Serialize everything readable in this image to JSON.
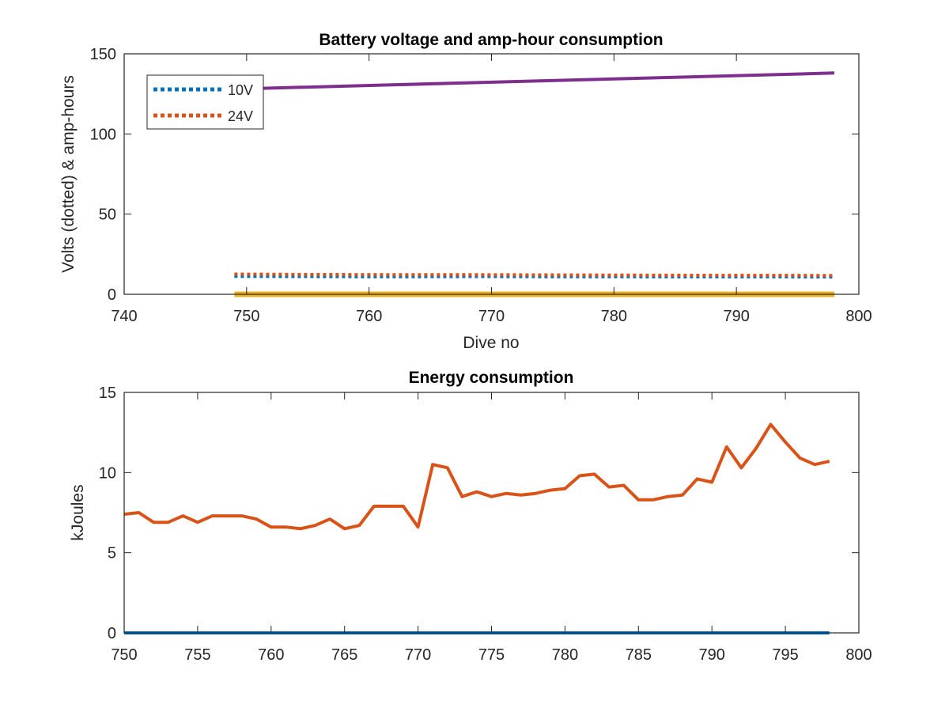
{
  "chart_data": [
    {
      "type": "line",
      "title": "Battery voltage and amp-hour consumption",
      "xlabel": "Dive no",
      "ylabel": "Volts (dotted) & amp-hours",
      "xlim": [
        740,
        800
      ],
      "ylim": [
        0,
        150
      ],
      "xticks": [
        740,
        750,
        760,
        770,
        780,
        790,
        800
      ],
      "yticks": [
        0,
        50,
        100,
        150
      ],
      "grid": false,
      "legend": {
        "placement": "top-left",
        "entries": [
          "10V",
          "24V"
        ]
      },
      "series": [
        {
          "name": "10V",
          "style": "dotted",
          "color": "#0072BD",
          "x": [
            749,
            754,
            759,
            764,
            769,
            774,
            779,
            784,
            789,
            794,
            798
          ],
          "y": [
            11.2,
            11.1,
            11.0,
            11.0,
            11.1,
            11.0,
            11.0,
            10.9,
            10.9,
            10.9,
            10.8
          ]
        },
        {
          "name": "24V",
          "style": "dotted",
          "color": "#D95319",
          "x": [
            749,
            754,
            759,
            764,
            769,
            774,
            779,
            784,
            789,
            794,
            798
          ],
          "y": [
            12.6,
            12.4,
            12.3,
            12.2,
            12.2,
            12.1,
            12.0,
            11.9,
            11.8,
            11.8,
            11.7
          ]
        },
        {
          "style": "solid",
          "color": "#7E2F8E",
          "x": [
            749,
            798
          ],
          "y": [
            128,
            138
          ]
        },
        {
          "style": "solid",
          "color": "#EDB120",
          "x": [
            749,
            798
          ],
          "y": [
            0,
            0
          ]
        }
      ]
    },
    {
      "type": "line",
      "title": "Energy consumption",
      "xlabel": "",
      "ylabel": "kJoules",
      "xlim": [
        750,
        800
      ],
      "ylim": [
        0,
        15
      ],
      "xticks": [
        750,
        755,
        760,
        765,
        770,
        775,
        780,
        785,
        790,
        795,
        800
      ],
      "yticks": [
        0,
        5,
        10,
        15
      ],
      "grid": false,
      "series": [
        {
          "color": "#0072BD",
          "x": [
            750,
            798
          ],
          "y": [
            0,
            0
          ]
        },
        {
          "color": "#D95319",
          "x": [
            750,
            751,
            752,
            753,
            754,
            755,
            756,
            757,
            758,
            759,
            760,
            761,
            762,
            763,
            764,
            765,
            766,
            767,
            768,
            769,
            770,
            771,
            772,
            773,
            774,
            775,
            776,
            777,
            778,
            779,
            780,
            781,
            782,
            783,
            784,
            785,
            786,
            787,
            788,
            789,
            790,
            791,
            792,
            793,
            794,
            795,
            796,
            797,
            798
          ],
          "y": [
            7.4,
            7.5,
            6.9,
            6.9,
            7.3,
            6.9,
            7.3,
            7.3,
            7.3,
            7.1,
            6.6,
            6.6,
            6.5,
            6.7,
            7.1,
            6.5,
            6.7,
            7.9,
            7.9,
            7.9,
            6.6,
            10.5,
            10.3,
            8.5,
            8.8,
            8.5,
            8.7,
            8.6,
            8.7,
            8.9,
            9.0,
            9.8,
            9.9,
            9.1,
            9.2,
            8.3,
            8.3,
            8.5,
            8.6,
            9.6,
            9.4,
            11.6,
            10.3,
            11.5,
            13.0,
            11.9,
            10.9,
            10.5,
            10.7
          ]
        }
      ]
    }
  ]
}
